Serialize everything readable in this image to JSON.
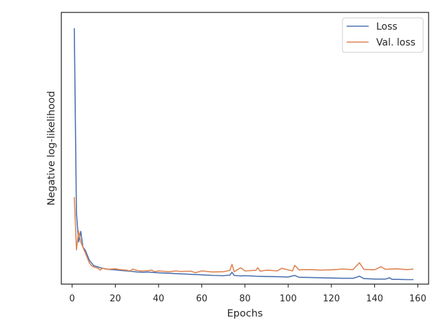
{
  "chart_data": {
    "type": "line",
    "title": "",
    "xlabel": "Epochs",
    "ylabel": "Negative log-likelihood",
    "xlim": [
      -5,
      165
    ],
    "ylim": [
      0.0,
      1.03
    ],
    "x_ticks": [
      0,
      20,
      40,
      60,
      80,
      100,
      120,
      140,
      160
    ],
    "y_ticks_visible": false,
    "grid": false,
    "legend_position": "top-right",
    "series": [
      {
        "name": "Loss",
        "color": "#4c72b0",
        "x": [
          1,
          2,
          3,
          4,
          5,
          6,
          7,
          8,
          9,
          10,
          12,
          14,
          16,
          18,
          20,
          22,
          25,
          28,
          30,
          33,
          35,
          38,
          40,
          45,
          50,
          55,
          60,
          65,
          70,
          73,
          74,
          75,
          78,
          80,
          85,
          90,
          95,
          100,
          103,
          105,
          110,
          115,
          120,
          125,
          130,
          132,
          133,
          135,
          140,
          145,
          147,
          148,
          150,
          155,
          158
        ],
        "y": [
          0.97,
          0.27,
          0.16,
          0.2,
          0.14,
          0.13,
          0.11,
          0.09,
          0.08,
          0.07,
          0.065,
          0.06,
          0.057,
          0.055,
          0.054,
          0.052,
          0.05,
          0.048,
          0.046,
          0.045,
          0.046,
          0.044,
          0.043,
          0.041,
          0.039,
          0.037,
          0.035,
          0.033,
          0.032,
          0.034,
          0.045,
          0.033,
          0.031,
          0.032,
          0.03,
          0.029,
          0.028,
          0.027,
          0.033,
          0.026,
          0.025,
          0.024,
          0.023,
          0.022,
          0.022,
          0.027,
          0.03,
          0.021,
          0.019,
          0.019,
          0.024,
          0.018,
          0.018,
          0.017,
          0.017
        ]
      },
      {
        "name": "Val. loss",
        "color": "#dd8452",
        "x": [
          1,
          2,
          3,
          4,
          5,
          6,
          7,
          8,
          9,
          10,
          12,
          13,
          14,
          16,
          18,
          20,
          22,
          25,
          27,
          28,
          30,
          32,
          35,
          37,
          38,
          40,
          45,
          48,
          50,
          55,
          57,
          60,
          65,
          70,
          73,
          74,
          75,
          78,
          80,
          85,
          86,
          87,
          90,
          95,
          97,
          100,
          102,
          103,
          105,
          110,
          115,
          120,
          125,
          130,
          133,
          135,
          140,
          143,
          145,
          150,
          155,
          158
        ],
        "y": [
          0.33,
          0.13,
          0.2,
          0.16,
          0.14,
          0.12,
          0.1,
          0.08,
          0.07,
          0.065,
          0.06,
          0.053,
          0.06,
          0.056,
          0.057,
          0.058,
          0.055,
          0.053,
          0.05,
          0.057,
          0.052,
          0.05,
          0.051,
          0.053,
          0.047,
          0.05,
          0.047,
          0.05,
          0.048,
          0.049,
          0.043,
          0.05,
          0.046,
          0.047,
          0.052,
          0.075,
          0.047,
          0.062,
          0.05,
          0.052,
          0.062,
          0.049,
          0.053,
          0.05,
          0.06,
          0.054,
          0.05,
          0.071,
          0.054,
          0.055,
          0.053,
          0.054,
          0.057,
          0.055,
          0.081,
          0.056,
          0.054,
          0.066,
          0.056,
          0.058,
          0.055,
          0.057
        ]
      }
    ]
  }
}
